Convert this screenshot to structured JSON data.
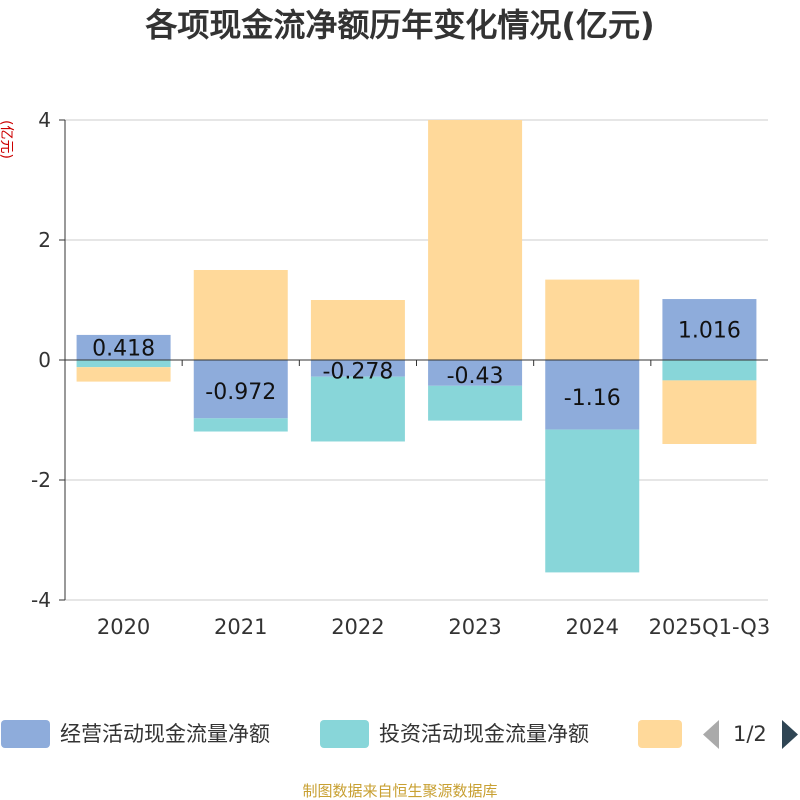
{
  "chart_data": {
    "type": "bar",
    "stacked": true,
    "title": "各项现金流净额历年变化情况(亿元)",
    "ylabel": "(亿元)",
    "categories": [
      "2020",
      "2021",
      "2022",
      "2023",
      "2024",
      "2025Q1-Q3"
    ],
    "ylim": [
      -4,
      4
    ],
    "yticks": [
      4,
      2,
      0,
      -2,
      -4
    ],
    "ytick_labels": [
      "4",
      "2",
      "0",
      "-2",
      "-4"
    ],
    "series": [
      {
        "name": "经营活动现金流量净额",
        "color": "#8eacdb",
        "values": [
          0.418,
          -0.972,
          -0.278,
          -0.43,
          -1.16,
          1.016
        ],
        "labels": [
          "0.418",
          "-0.972",
          "-0.278",
          "-0.43",
          "-1.16",
          "1.016"
        ]
      },
      {
        "name": "投资活动现金流量净额",
        "color": "#88d6d9",
        "values": [
          -0.12,
          -0.22,
          -1.08,
          -0.58,
          -2.38,
          -0.34
        ]
      },
      {
        "name": "",
        "color": "#ffd99a",
        "values": [
          -0.24,
          1.5,
          1.0,
          4.0,
          1.34,
          -1.06
        ]
      }
    ],
    "legend_placement": "bottom",
    "legend_page": "1/2"
  },
  "footer": "制图数据来自恒生聚源数据库"
}
